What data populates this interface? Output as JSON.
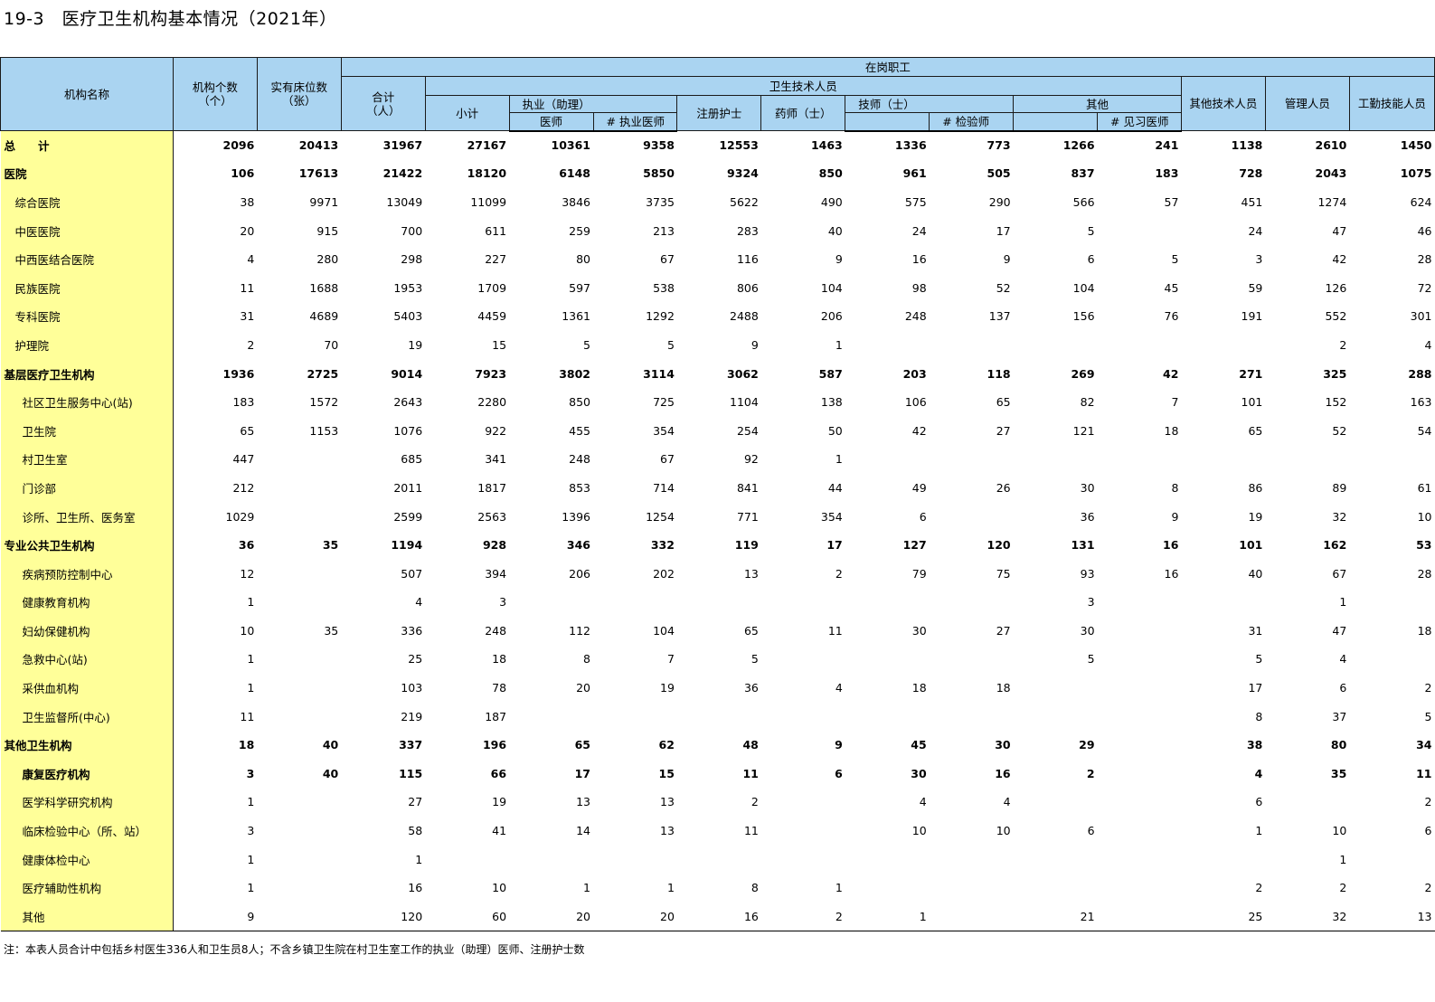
{
  "title": "19-3　医疗卫生机构基本情况（2021年）",
  "headers": {
    "institution_name": "机构名称",
    "inst_count": [
      "机构个数",
      "（个）"
    ],
    "beds": [
      "实有床位数",
      "（张）"
    ],
    "staff_group": "在岗职工",
    "total": [
      "合计",
      "（人）"
    ],
    "health_tech_group": "卫生技术人员",
    "subtotal": "小计",
    "licensed_physician": [
      "执业（助理）",
      "医师"
    ],
    "licensed_physician_sub": "#  执业医师",
    "nurse": "注册护士",
    "pharmacist": "药师（士）",
    "technician": "技师（士）",
    "technician_sub": "#  检验师",
    "other": "其他",
    "other_sub": "#  见习医师",
    "other_tech": "其他技术人员",
    "management": "管理人员",
    "worker": "工勤技能人员"
  },
  "rows": [
    {
      "name": "总　　计",
      "level": 0,
      "bold": true,
      "values": [
        "2096",
        "20413",
        "31967",
        "27167",
        "10361",
        "9358",
        "12553",
        "1463",
        "1336",
        "773",
        "1266",
        "241",
        "1138",
        "2610",
        "1450"
      ]
    },
    {
      "name": "医院",
      "level": 0,
      "bold": true,
      "values": [
        "106",
        "17613",
        "21422",
        "18120",
        "6148",
        "5850",
        "9324",
        "850",
        "961",
        "505",
        "837",
        "183",
        "728",
        "2043",
        "1075"
      ]
    },
    {
      "name": "综合医院",
      "level": 1,
      "bold": false,
      "values": [
        "38",
        "9971",
        "13049",
        "11099",
        "3846",
        "3735",
        "5622",
        "490",
        "575",
        "290",
        "566",
        "57",
        "451",
        "1274",
        "624"
      ]
    },
    {
      "name": "中医医院",
      "level": 1,
      "bold": false,
      "values": [
        "20",
        "915",
        "700",
        "611",
        "259",
        "213",
        "283",
        "40",
        "24",
        "17",
        "5",
        "",
        "24",
        "47",
        "46"
      ]
    },
    {
      "name": "中西医结合医院",
      "level": 1,
      "bold": false,
      "values": [
        "4",
        "280",
        "298",
        "227",
        "80",
        "67",
        "116",
        "9",
        "16",
        "9",
        "6",
        "5",
        "3",
        "42",
        "28"
      ]
    },
    {
      "name": "民族医院",
      "level": 1,
      "bold": false,
      "values": [
        "11",
        "1688",
        "1953",
        "1709",
        "597",
        "538",
        "806",
        "104",
        "98",
        "52",
        "104",
        "45",
        "59",
        "126",
        "72"
      ]
    },
    {
      "name": "专科医院",
      "level": 1,
      "bold": false,
      "values": [
        "31",
        "4689",
        "5403",
        "4459",
        "1361",
        "1292",
        "2488",
        "206",
        "248",
        "137",
        "156",
        "76",
        "191",
        "552",
        "301"
      ]
    },
    {
      "name": "护理院",
      "level": 1,
      "bold": false,
      "values": [
        "2",
        "70",
        "19",
        "15",
        "5",
        "5",
        "9",
        "1",
        "",
        "",
        "",
        "",
        "",
        "2",
        "4"
      ]
    },
    {
      "name": "基层医疗卫生机构",
      "level": 0,
      "bold": true,
      "values": [
        "1936",
        "2725",
        "9014",
        "7923",
        "3802",
        "3114",
        "3062",
        "587",
        "203",
        "118",
        "269",
        "42",
        "271",
        "325",
        "288"
      ]
    },
    {
      "name": "社区卫生服务中心(站)",
      "level": 2,
      "bold": false,
      "values": [
        "183",
        "1572",
        "2643",
        "2280",
        "850",
        "725",
        "1104",
        "138",
        "106",
        "65",
        "82",
        "7",
        "101",
        "152",
        "163"
      ]
    },
    {
      "name": "卫生院",
      "level": 2,
      "bold": false,
      "values": [
        "65",
        "1153",
        "1076",
        "922",
        "455",
        "354",
        "254",
        "50",
        "42",
        "27",
        "121",
        "18",
        "65",
        "52",
        "54"
      ]
    },
    {
      "name": "村卫生室",
      "level": 2,
      "bold": false,
      "values": [
        "447",
        "",
        "685",
        "341",
        "248",
        "67",
        "92",
        "1",
        "",
        "",
        "",
        "",
        "",
        "",
        ""
      ]
    },
    {
      "name": "门诊部",
      "level": 2,
      "bold": false,
      "values": [
        "212",
        "",
        "2011",
        "1817",
        "853",
        "714",
        "841",
        "44",
        "49",
        "26",
        "30",
        "8",
        "86",
        "89",
        "61"
      ]
    },
    {
      "name": "诊所、卫生所、医务室",
      "level": 2,
      "bold": false,
      "values": [
        "1029",
        "",
        "2599",
        "2563",
        "1396",
        "1254",
        "771",
        "354",
        "6",
        "",
        "36",
        "9",
        "19",
        "32",
        "10"
      ]
    },
    {
      "name": "专业公共卫生机构",
      "level": 0,
      "bold": true,
      "values": [
        "36",
        "35",
        "1194",
        "928",
        "346",
        "332",
        "119",
        "17",
        "127",
        "120",
        "131",
        "16",
        "101",
        "162",
        "53"
      ]
    },
    {
      "name": "疾病预防控制中心",
      "level": 2,
      "bold": false,
      "values": [
        "12",
        "",
        "507",
        "394",
        "206",
        "202",
        "13",
        "2",
        "79",
        "75",
        "93",
        "16",
        "40",
        "67",
        "28"
      ]
    },
    {
      "name": "健康教育机构",
      "level": 2,
      "bold": false,
      "values": [
        "1",
        "",
        "4",
        "3",
        "",
        "",
        "",
        "",
        "",
        "",
        "3",
        "",
        "",
        "1",
        ""
      ]
    },
    {
      "name": "妇幼保健机构",
      "level": 2,
      "bold": false,
      "values": [
        "10",
        "35",
        "336",
        "248",
        "112",
        "104",
        "65",
        "11",
        "30",
        "27",
        "30",
        "",
        "31",
        "47",
        "18"
      ]
    },
    {
      "name": "急救中心(站)",
      "level": 2,
      "bold": false,
      "values": [
        "1",
        "",
        "25",
        "18",
        "8",
        "7",
        "5",
        "",
        "",
        "",
        "5",
        "",
        "5",
        "4",
        ""
      ]
    },
    {
      "name": "采供血机构",
      "level": 2,
      "bold": false,
      "values": [
        "1",
        "",
        "103",
        "78",
        "20",
        "19",
        "36",
        "4",
        "18",
        "18",
        "",
        "",
        "17",
        "6",
        "2"
      ]
    },
    {
      "name": "卫生监督所(中心)",
      "level": 2,
      "bold": false,
      "values": [
        "11",
        "",
        "219",
        "187",
        "",
        "",
        "",
        "",
        "",
        "",
        "",
        "",
        "8",
        "37",
        "5"
      ]
    },
    {
      "name": "其他卫生机构",
      "level": 0,
      "bold": true,
      "values": [
        "18",
        "40",
        "337",
        "196",
        "65",
        "62",
        "48",
        "9",
        "45",
        "30",
        "29",
        "",
        "38",
        "80",
        "34"
      ]
    },
    {
      "name": "康复医疗机构",
      "level": 2,
      "bold": true,
      "values": [
        "3",
        "40",
        "115",
        "66",
        "17",
        "15",
        "11",
        "6",
        "30",
        "16",
        "2",
        "",
        "4",
        "35",
        "11"
      ]
    },
    {
      "name": "医学科学研究机构",
      "level": 2,
      "bold": false,
      "values": [
        "1",
        "",
        "27",
        "19",
        "13",
        "13",
        "2",
        "",
        "4",
        "4",
        "",
        "",
        "6",
        "",
        "2"
      ]
    },
    {
      "name": "临床检验中心（所、站）",
      "level": 2,
      "bold": false,
      "values": [
        "3",
        "",
        "58",
        "41",
        "14",
        "13",
        "11",
        "",
        "10",
        "10",
        "6",
        "",
        "1",
        "10",
        "6"
      ]
    },
    {
      "name": "健康体检中心",
      "level": 2,
      "bold": false,
      "values": [
        "1",
        "",
        "1",
        "",
        "",
        "",
        "",
        "",
        "",
        "",
        "",
        "",
        "",
        "1",
        ""
      ]
    },
    {
      "name": "医疗辅助性机构",
      "level": 2,
      "bold": false,
      "values": [
        "1",
        "",
        "16",
        "10",
        "1",
        "1",
        "8",
        "1",
        "",
        "",
        "",
        "",
        "2",
        "2",
        "2"
      ]
    },
    {
      "name": "其他",
      "level": 2,
      "bold": false,
      "values": [
        "9",
        "",
        "120",
        "60",
        "20",
        "20",
        "16",
        "2",
        "1",
        "",
        "21",
        "",
        "25",
        "32",
        "13"
      ]
    }
  ],
  "note": "注：本表人员合计中包括乡村医生336人和卫生员8人；不含乡镇卫生院在村卫生室工作的执业（助理）医师、注册护士数"
}
